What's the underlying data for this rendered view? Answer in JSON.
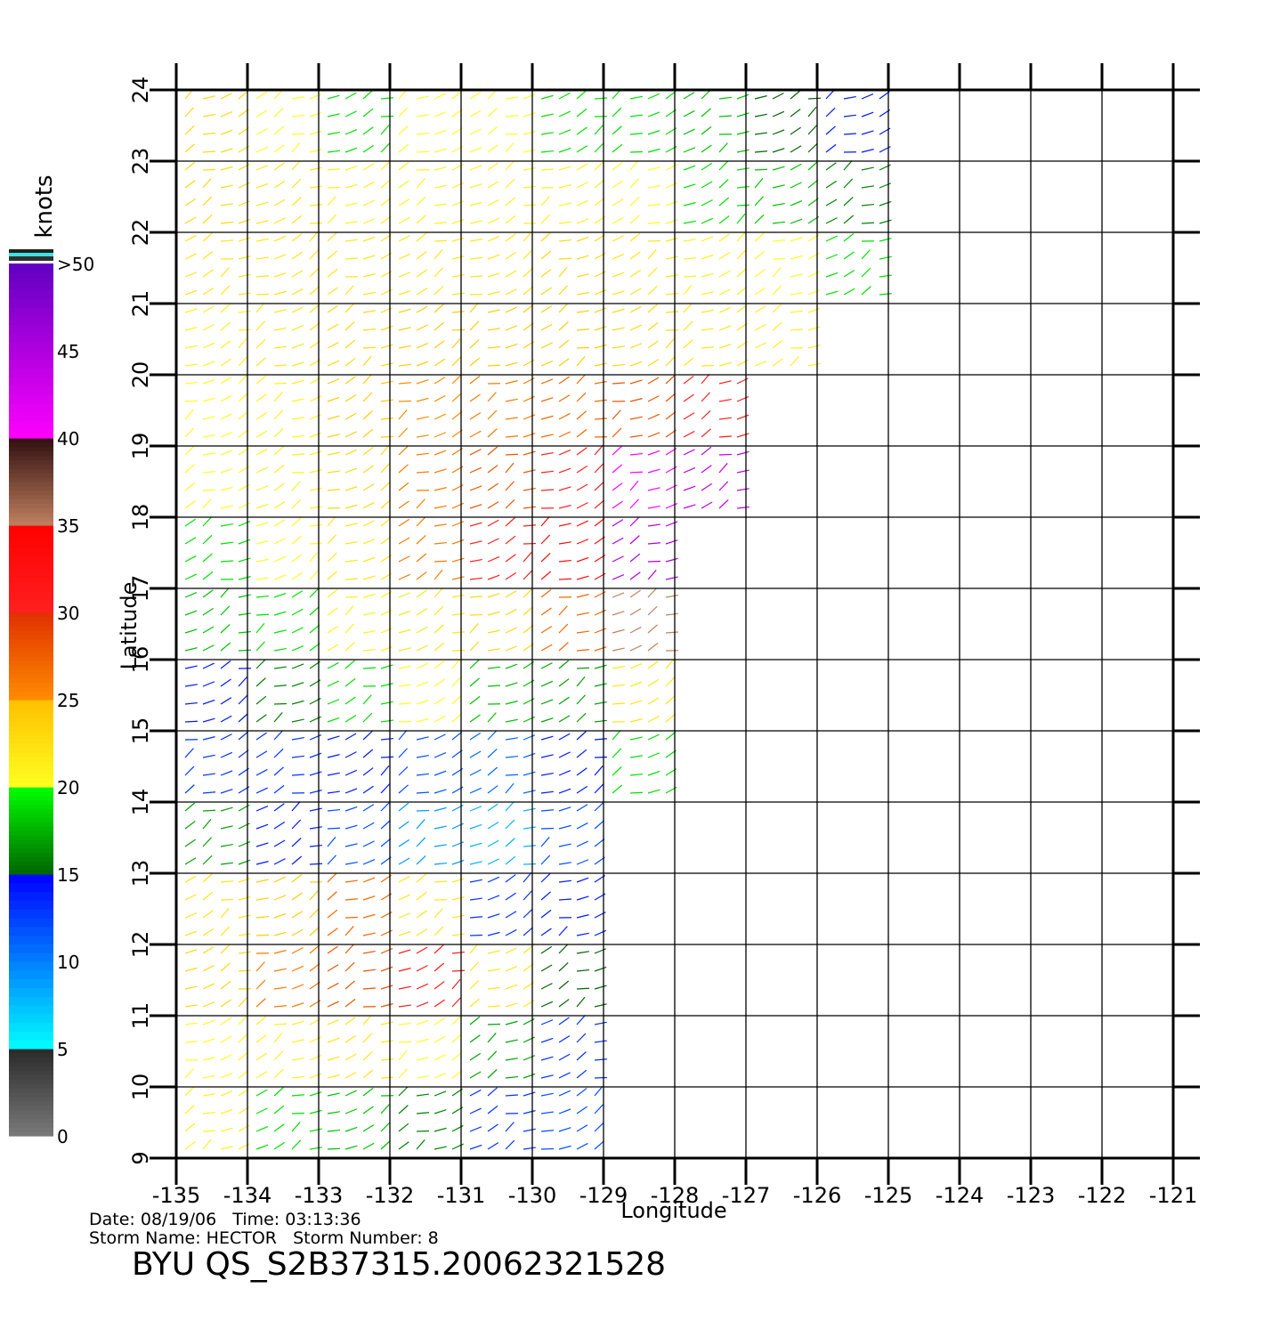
{
  "chart_data": {
    "type": "wind-field",
    "title": "BYU QS_S2B37315.20062321528",
    "info": [
      "Date: 08/19/06   Time: 03:13:36",
      "Storm Name: HECTOR   Storm Number: 8"
    ],
    "xlabel": "Longitude",
    "ylabel": "Latitude",
    "xlim": [
      -135,
      -121
    ],
    "ylim": [
      9,
      24
    ],
    "xticks": [
      -135,
      -134,
      -133,
      -132,
      -131,
      -130,
      -129,
      -128,
      -127,
      -126,
      -125,
      -124,
      -123,
      -122,
      -121
    ],
    "yticks": [
      9,
      10,
      11,
      12,
      13,
      14,
      15,
      16,
      17,
      18,
      19,
      20,
      21,
      22,
      23,
      24
    ],
    "grid": true,
    "colorbar": {
      "label": "knots",
      "lim": [
        0,
        50
      ],
      "ticks": [
        0,
        5,
        10,
        15,
        20,
        25,
        30,
        35,
        40,
        45,
        {
          "value": 50,
          "label": ">50"
        }
      ],
      "bands": [
        {
          "range": [
            0,
            5
          ],
          "colors": [
            "#7a7a7a",
            "#2a2a2a"
          ]
        },
        {
          "range": [
            5,
            15
          ],
          "colors": [
            "#00ffff",
            "#0000ff"
          ]
        },
        {
          "range": [
            15,
            20
          ],
          "colors": [
            "#006400",
            "#00ff00"
          ]
        },
        {
          "range": [
            20,
            25
          ],
          "colors": [
            "#ffff20",
            "#ffc000"
          ]
        },
        {
          "range": [
            25,
            30
          ],
          "colors": [
            "#ff8c00",
            "#e03000"
          ]
        },
        {
          "range": [
            30,
            35
          ],
          "colors": [
            "#ff2020",
            "#ff0000"
          ]
        },
        {
          "range": [
            35,
            40
          ],
          "colors": [
            "#c08060",
            "#301010"
          ]
        },
        {
          "range": [
            40,
            50
          ],
          "colors": [
            "#ff00ff",
            "#6000c0"
          ]
        }
      ]
    },
    "lat": [
      23.5,
      22.5,
      21.5,
      20.5,
      19.5,
      18.5,
      17.5,
      16.5,
      15.5,
      14.5,
      13.5,
      12.5,
      11.5,
      10.5,
      9.5
    ],
    "lon": [
      -134.5,
      -133.5,
      -132.5,
      -131.5,
      -130.5,
      -129.5,
      -128.5,
      -127.5,
      -126.5,
      -125.5
    ],
    "speeds": [
      [
        23,
        20,
        19,
        20,
        20,
        19,
        19,
        18,
        15,
        14
      ],
      [
        23,
        22,
        21,
        21,
        21,
        21,
        20,
        19,
        18,
        16
      ],
      [
        22,
        22,
        22,
        22,
        22,
        23,
        22,
        21,
        20,
        19
      ],
      [
        21,
        22,
        23,
        24,
        24,
        24,
        23,
        22,
        21,
        null
      ],
      [
        20,
        21,
        24,
        25,
        26,
        27,
        28,
        30,
        null,
        null
      ],
      [
        20,
        21,
        23,
        26,
        28,
        30,
        40,
        44,
        null,
        null
      ],
      [
        19,
        20,
        22,
        26,
        30,
        33,
        45,
        null,
        null,
        null
      ],
      [
        18,
        19,
        21,
        22,
        23,
        27,
        35,
        null,
        null,
        null
      ],
      [
        14,
        16,
        19,
        20,
        18,
        17,
        22,
        null,
        null,
        null
      ],
      [
        13,
        13,
        14,
        12,
        11,
        14,
        19,
        null,
        null,
        null
      ],
      [
        17,
        14,
        12,
        9,
        8,
        12,
        null,
        null,
        null,
        null
      ],
      [
        22,
        24,
        27,
        22,
        13,
        14,
        null,
        null,
        null,
        null
      ],
      [
        23,
        26,
        28,
        31,
        22,
        15,
        null,
        null,
        null,
        null
      ],
      [
        20,
        21,
        22,
        20,
        17,
        13,
        null,
        null,
        null,
        null
      ],
      [
        21,
        19,
        18,
        16,
        13,
        12,
        null,
        null,
        null,
        null
      ]
    ]
  }
}
